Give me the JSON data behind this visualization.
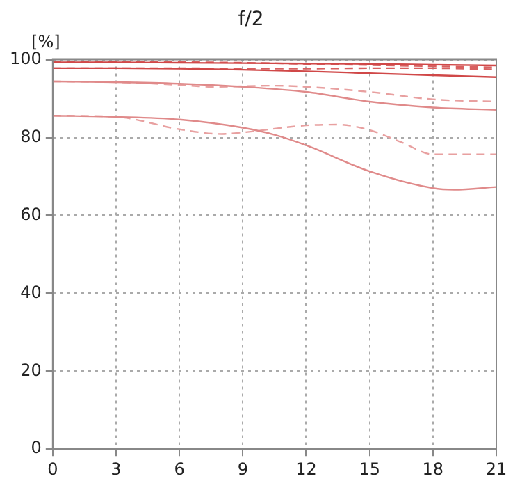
{
  "chart_data": {
    "type": "line",
    "title": "f/2",
    "ylabel": "[%]",
    "xlim": [
      0,
      21
    ],
    "xticks": [
      0,
      3,
      6,
      9,
      12,
      15,
      18,
      21
    ],
    "ylim": [
      0,
      100
    ],
    "yticks": [
      0,
      20,
      40,
      60,
      80,
      100
    ],
    "grid": true,
    "legend": false,
    "marker": "none",
    "series": [
      {
        "color": "#d04848",
        "line_style": "solid",
        "x": [
          0,
          3,
          6,
          9,
          12,
          15,
          18,
          21
        ],
        "values": [
          99.3,
          99.3,
          99.2,
          99.1,
          99,
          98.9,
          98.7,
          98.5
        ]
      },
      {
        "color": "#d86060",
        "line_style": "dashed",
        "x": [
          0,
          3,
          6,
          9,
          12,
          15,
          18,
          21
        ],
        "values": [
          99.5,
          99.5,
          99.4,
          99.2,
          98.9,
          98.6,
          98.3,
          98
        ]
      },
      {
        "color": "#d04848",
        "line_style": "solid",
        "x": [
          0,
          3,
          6,
          9,
          12,
          15,
          18,
          21
        ],
        "values": [
          97.8,
          97.8,
          97.7,
          97.4,
          97,
          96.5,
          96,
          95.5
        ]
      },
      {
        "color": "#d86060",
        "line_style": "dashed",
        "x": [
          0,
          3,
          6,
          9,
          12,
          15,
          18,
          21
        ],
        "values": [
          97.8,
          97.8,
          97.8,
          97.7,
          97.7,
          97.8,
          97.8,
          97.5
        ]
      },
      {
        "color": "#e08a8a",
        "line_style": "solid",
        "x": [
          0,
          3,
          6,
          9,
          12,
          15,
          18,
          21
        ],
        "values": [
          94.4,
          94.2,
          93.8,
          93,
          91.7,
          89.2,
          87.7,
          87.1
        ]
      },
      {
        "color": "#e8a0a0",
        "line_style": "dashed",
        "x": [
          0,
          3,
          6,
          7.5,
          10.5,
          12,
          15,
          18,
          21
        ],
        "values": [
          94.4,
          94.2,
          93.5,
          93,
          93.3,
          93,
          91.7,
          89.8,
          89.2
        ]
      },
      {
        "color": "#e08a8a",
        "line_style": "solid",
        "x": [
          0,
          3,
          6,
          9,
          10.5,
          12,
          15,
          18,
          19,
          21
        ],
        "values": [
          85.6,
          85.3,
          84.6,
          82.5,
          80.7,
          78,
          71.3,
          67,
          66.6,
          67.3
        ]
      },
      {
        "color": "#e8a0a0",
        "line_style": "dashed",
        "x": [
          0,
          3,
          6,
          8,
          9,
          12,
          13.5,
          15,
          16.5,
          18,
          21
        ],
        "values": [
          85.6,
          85.3,
          82.1,
          80.9,
          81.3,
          83.1,
          83.3,
          81.9,
          78.8,
          75.7,
          75.7
        ]
      }
    ]
  }
}
